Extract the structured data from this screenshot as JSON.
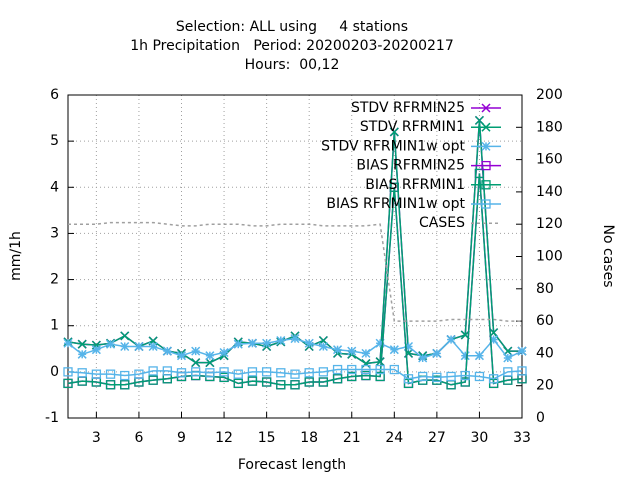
{
  "chart_data": {
    "type": "line",
    "title": [
      "Selection: ALL using     4 stations",
      "1h Precipitation   Period: 20200203-20200217",
      "Hours:  00,12"
    ],
    "x_label": "Forecast length",
    "y_label": "mm/1h",
    "y2_label": "No cases",
    "x": [
      1,
      2,
      3,
      4,
      5,
      6,
      7,
      8,
      9,
      10,
      11,
      12,
      13,
      14,
      15,
      16,
      17,
      18,
      19,
      20,
      21,
      22,
      23,
      24,
      25,
      26,
      27,
      28,
      29,
      30,
      31,
      32,
      33
    ],
    "xlim": [
      1,
      33
    ],
    "xticks": [
      3,
      6,
      9,
      12,
      15,
      18,
      21,
      24,
      27,
      30,
      33
    ],
    "ylim": [
      -1,
      6
    ],
    "yticks": [
      -1,
      0,
      1,
      2,
      3,
      4,
      5,
      6
    ],
    "y2lim": [
      0,
      200
    ],
    "y2ticks": [
      0,
      20,
      40,
      60,
      80,
      100,
      120,
      140,
      160,
      180,
      200
    ],
    "grid": true,
    "legend": "top right",
    "series": [
      {
        "name": "STDV RFRMIN25",
        "color": "#9400d3",
        "marker": "x",
        "values": [
          0.65,
          0.6,
          0.58,
          0.62,
          0.78,
          0.55,
          0.67,
          0.45,
          0.4,
          0.2,
          0.2,
          0.35,
          0.65,
          0.62,
          0.55,
          0.65,
          0.78,
          0.55,
          0.68,
          0.4,
          0.38,
          0.18,
          0.22,
          5.2,
          0.4,
          0.35,
          0.4,
          0.7,
          0.8,
          5.45,
          0.85,
          0.45,
          0.45
        ]
      },
      {
        "name": "STDV RFRMIN1",
        "color": "#009e73",
        "marker": "x",
        "values": [
          0.65,
          0.6,
          0.58,
          0.62,
          0.78,
          0.55,
          0.67,
          0.45,
          0.4,
          0.2,
          0.2,
          0.35,
          0.65,
          0.62,
          0.55,
          0.65,
          0.78,
          0.55,
          0.68,
          0.4,
          0.38,
          0.18,
          0.22,
          5.2,
          0.4,
          0.35,
          0.4,
          0.7,
          0.8,
          5.45,
          0.85,
          0.45,
          0.45
        ]
      },
      {
        "name": "STDV RFRMIN1w opt",
        "color": "#56b4e9",
        "marker": "star",
        "values": [
          0.62,
          0.38,
          0.48,
          0.6,
          0.55,
          0.55,
          0.55,
          0.45,
          0.35,
          0.45,
          0.35,
          0.42,
          0.6,
          0.62,
          0.62,
          0.68,
          0.72,
          0.62,
          0.55,
          0.48,
          0.45,
          0.4,
          0.62,
          0.48,
          0.55,
          0.3,
          0.4,
          0.7,
          0.35,
          0.35,
          0.7,
          0.3,
          0.45
        ]
      },
      {
        "name": "BIAS RFRMIN25",
        "color": "#9400d3",
        "marker": "square",
        "values": [
          -0.25,
          -0.2,
          -0.22,
          -0.28,
          -0.28,
          -0.22,
          -0.18,
          -0.15,
          -0.1,
          -0.08,
          -0.1,
          -0.12,
          -0.25,
          -0.2,
          -0.22,
          -0.28,
          -0.28,
          -0.22,
          -0.22,
          -0.15,
          -0.1,
          -0.08,
          -0.1,
          4.0,
          -0.25,
          -0.18,
          -0.18,
          -0.28,
          -0.22,
          4.3,
          -0.25,
          -0.18,
          -0.15
        ]
      },
      {
        "name": "BIAS RFRMIN1",
        "color": "#009e73",
        "marker": "square",
        "values": [
          -0.25,
          -0.2,
          -0.22,
          -0.28,
          -0.28,
          -0.22,
          -0.18,
          -0.15,
          -0.1,
          -0.08,
          -0.1,
          -0.12,
          -0.25,
          -0.2,
          -0.22,
          -0.28,
          -0.28,
          -0.22,
          -0.22,
          -0.15,
          -0.1,
          -0.08,
          -0.1,
          4.0,
          -0.25,
          -0.18,
          -0.18,
          -0.28,
          -0.22,
          4.3,
          -0.25,
          -0.18,
          -0.15
        ]
      },
      {
        "name": "BIAS RFRMIN1w opt",
        "color": "#56b4e9",
        "marker": "square",
        "values": [
          0,
          -0.02,
          -0.05,
          -0.05,
          -0.08,
          -0.05,
          0.02,
          0.02,
          -0.02,
          0,
          -0.02,
          0,
          -0.05,
          0,
          0,
          -0.02,
          -0.05,
          -0.02,
          0,
          0.05,
          0.05,
          0.05,
          0.05,
          0.05,
          -0.15,
          -0.1,
          -0.12,
          -0.1,
          -0.08,
          -0.1,
          -0.15,
          0,
          0.02
        ]
      },
      {
        "name": "CASES",
        "color": "#a0a0a0",
        "marker": "none",
        "dashed": true,
        "axis": "y2",
        "values": [
          120,
          120,
          120,
          121,
          121,
          121,
          121,
          120,
          119,
          119,
          120,
          120,
          120,
          119,
          119,
          120,
          120,
          120,
          119,
          119,
          119,
          119,
          120,
          60,
          60,
          60,
          60,
          61,
          61,
          61,
          61,
          60,
          60
        ]
      }
    ]
  }
}
